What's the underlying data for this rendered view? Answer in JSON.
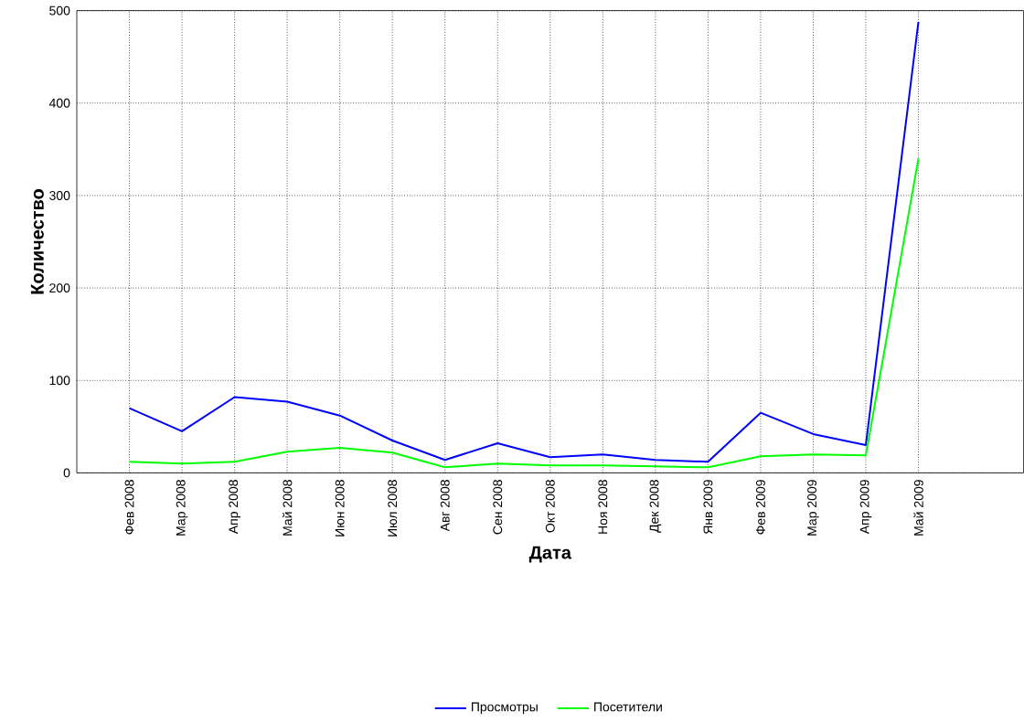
{
  "chart_data": {
    "type": "line",
    "xlabel": "Дата",
    "ylabel": "Количество",
    "categories": [
      "Фев 2008",
      "Мар 2008",
      "Апр 2008",
      "Май 2008",
      "Июн 2008",
      "Июл 2008",
      "Авг 2008",
      "Сен 2008",
      "Окт 2008",
      "Ноя 2008",
      "Дек 2008",
      "Янв 2009",
      "Фев 2009",
      "Мар 2009",
      "Апр 2009",
      "Май 2009"
    ],
    "series": [
      {
        "name": "Просмотры",
        "color": "#0000ff",
        "values": [
          70,
          45,
          82,
          77,
          62,
          35,
          14,
          32,
          17,
          20,
          14,
          12,
          65,
          42,
          30,
          488
        ]
      },
      {
        "name": "Посетители",
        "color": "#00ff00",
        "values": [
          12,
          10,
          12,
          23,
          27,
          22,
          6,
          10,
          8,
          8,
          7,
          6,
          18,
          20,
          19,
          340
        ]
      }
    ],
    "ylim": [
      0,
      500
    ],
    "yticks": [
      0,
      100,
      200,
      300,
      400,
      500
    ],
    "grid": true,
    "legend": "bottom",
    "marker": "none",
    "line_style": "solid"
  }
}
